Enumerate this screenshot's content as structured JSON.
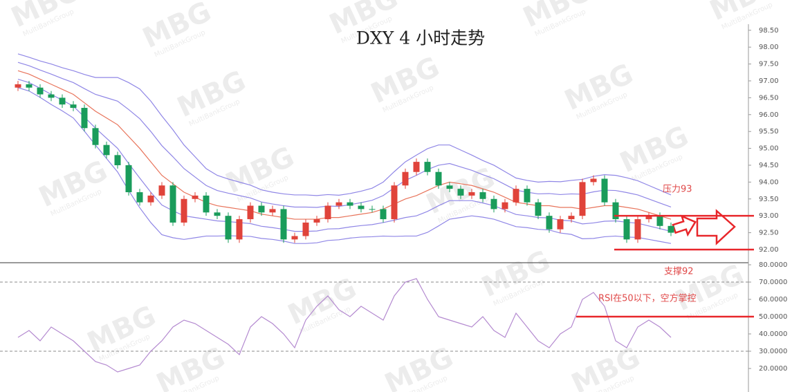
{
  "chart_data": [
    {
      "type": "candlestick",
      "title": "DXY 4 小时走势",
      "watermark": {
        "logo": "MBG",
        "text": "MultiBankGroup"
      },
      "up_color": "#e0433a",
      "down_color": "#1a9c5b",
      "open": [
        96.8,
        96.9,
        96.8,
        96.6,
        96.5,
        96.3,
        96.2,
        95.6,
        95.1,
        94.8,
        94.5,
        93.7,
        93.4,
        93.6,
        93.9,
        92.8,
        93.5,
        93.6,
        93.1,
        93.0,
        92.3,
        92.9,
        93.3,
        93.1,
        93.2,
        92.3,
        92.4,
        92.8,
        92.9,
        93.3,
        93.4,
        93.3,
        93.2,
        93.2,
        92.9,
        93.9,
        94.3,
        94.6,
        94.3,
        93.9,
        93.8,
        93.6,
        93.7,
        93.5,
        93.2,
        93.4,
        93.8,
        93.4,
        93.0,
        92.6,
        92.9,
        93.0,
        94.0,
        94.1,
        93.4,
        92.9,
        92.3,
        92.9,
        93.0,
        92.7
      ],
      "high": [
        97.0,
        97.0,
        96.9,
        96.7,
        96.6,
        96.4,
        96.3,
        95.7,
        95.2,
        94.9,
        94.6,
        93.8,
        93.7,
        94.0,
        94.0,
        93.6,
        93.7,
        93.7,
        93.2,
        93.1,
        93.0,
        93.4,
        93.4,
        93.3,
        93.3,
        92.5,
        92.9,
        93.0,
        93.4,
        93.5,
        93.5,
        93.4,
        93.3,
        93.3,
        94.0,
        94.4,
        94.7,
        94.7,
        94.4,
        94.0,
        93.9,
        93.8,
        93.8,
        93.6,
        93.5,
        93.9,
        93.9,
        93.5,
        93.1,
        93.0,
        93.1,
        94.1,
        94.2,
        94.2,
        93.5,
        93.0,
        93.0,
        93.1,
        93.1,
        92.8
      ],
      "low": [
        96.7,
        96.7,
        96.5,
        96.4,
        96.2,
        96.1,
        95.5,
        95.0,
        94.7,
        94.4,
        93.6,
        93.3,
        93.3,
        93.5,
        92.7,
        92.7,
        93.4,
        93.0,
        92.9,
        92.2,
        92.2,
        92.8,
        93.0,
        93.0,
        92.2,
        92.2,
        92.3,
        92.7,
        92.8,
        93.2,
        93.2,
        93.1,
        93.1,
        92.8,
        92.8,
        93.8,
        94.2,
        94.2,
        93.8,
        93.7,
        93.5,
        93.5,
        93.4,
        93.1,
        93.1,
        93.3,
        93.3,
        92.9,
        92.5,
        92.5,
        92.8,
        92.9,
        93.9,
        93.3,
        92.8,
        92.2,
        92.2,
        92.8,
        92.6,
        92.4
      ],
      "close": [
        96.9,
        96.8,
        96.6,
        96.5,
        96.3,
        96.2,
        95.6,
        95.1,
        94.8,
        94.5,
        93.7,
        93.4,
        93.6,
        93.9,
        92.8,
        93.5,
        93.6,
        93.1,
        93.0,
        92.3,
        92.9,
        93.3,
        93.1,
        93.2,
        92.3,
        92.4,
        92.8,
        92.9,
        93.3,
        93.4,
        93.3,
        93.2,
        93.2,
        92.9,
        93.9,
        94.3,
        94.6,
        94.3,
        93.9,
        93.8,
        93.6,
        93.7,
        93.5,
        93.2,
        93.4,
        93.8,
        93.4,
        93.0,
        92.6,
        92.9,
        93.0,
        94.0,
        94.1,
        93.4,
        92.9,
        92.3,
        92.9,
        93.0,
        92.7,
        92.5
      ],
      "series": [
        {
          "color": "#8f86e6",
          "values": [
            97.8,
            97.7,
            97.59,
            97.5,
            97.39,
            97.3,
            97.19,
            97.1,
            97.1,
            97.1,
            96.95,
            96.76,
            96.4,
            95.96,
            95.55,
            95.1,
            94.75,
            94.4,
            94.2,
            94.09,
            94.0,
            93.91,
            93.77,
            93.7,
            93.65,
            93.62,
            93.62,
            93.6,
            93.63,
            93.61,
            93.66,
            93.73,
            93.82,
            94.0,
            94.31,
            94.6,
            94.8,
            94.99,
            95.1,
            95.1,
            94.95,
            94.8,
            94.64,
            94.5,
            94.31,
            94.12,
            94.05,
            94.0,
            94.02,
            94.01,
            94.05,
            94.08,
            94.17,
            94.22,
            94.2,
            94.13,
            94.04,
            93.9,
            93.76,
            93.62
          ]
        },
        {
          "color": "#8f86e6",
          "values": [
            97.55,
            97.45,
            97.32,
            97.2,
            97.07,
            96.95,
            96.77,
            96.6,
            96.5,
            96.4,
            96.15,
            95.88,
            95.5,
            95.08,
            94.75,
            94.4,
            94.15,
            93.9,
            93.75,
            93.67,
            93.6,
            93.53,
            93.41,
            93.35,
            93.3,
            93.26,
            93.26,
            93.25,
            93.29,
            93.28,
            93.33,
            93.39,
            93.46,
            93.6,
            93.83,
            94.05,
            94.2,
            94.37,
            94.5,
            94.55,
            94.45,
            94.35,
            94.22,
            94.1,
            93.93,
            93.76,
            93.7,
            93.65,
            93.66,
            93.63,
            93.65,
            93.64,
            93.71,
            93.76,
            93.75,
            93.69,
            93.62,
            93.5,
            93.38,
            93.26
          ]
        },
        {
          "color": "#e8735a",
          "values": [
            97.3,
            97.2,
            97.05,
            96.9,
            96.75,
            96.6,
            96.35,
            96.1,
            95.9,
            95.7,
            95.35,
            95.0,
            94.6,
            94.2,
            93.95,
            93.7,
            93.55,
            93.4,
            93.3,
            93.25,
            93.2,
            93.15,
            93.05,
            93.0,
            92.95,
            92.9,
            92.9,
            92.9,
            92.95,
            92.95,
            93.0,
            93.05,
            93.1,
            93.2,
            93.35,
            93.5,
            93.6,
            93.75,
            93.9,
            94.0,
            93.95,
            93.9,
            93.8,
            93.7,
            93.55,
            93.4,
            93.35,
            93.3,
            93.3,
            93.25,
            93.25,
            93.2,
            93.25,
            93.3,
            93.3,
            93.25,
            93.2,
            93.1,
            93.0,
            92.9
          ]
        },
        {
          "color": "#8f86e6",
          "values": [
            97.05,
            96.95,
            96.78,
            96.6,
            96.43,
            96.25,
            95.93,
            95.6,
            95.3,
            95.0,
            94.55,
            94.12,
            93.7,
            93.32,
            93.15,
            93.0,
            92.95,
            92.9,
            92.85,
            92.83,
            92.8,
            92.77,
            92.69,
            92.65,
            92.6,
            92.54,
            92.54,
            92.55,
            92.61,
            92.62,
            92.67,
            92.71,
            92.74,
            92.8,
            92.87,
            92.95,
            93.0,
            93.13,
            93.3,
            93.45,
            93.45,
            93.45,
            93.38,
            93.3,
            93.17,
            93.04,
            93.0,
            92.95,
            92.94,
            92.87,
            92.85,
            92.76,
            92.79,
            92.84,
            92.85,
            92.81,
            92.78,
            92.7,
            92.62,
            92.54
          ]
        },
        {
          "color": "#8f86e6",
          "values": [
            96.8,
            96.7,
            96.51,
            96.3,
            96.11,
            95.9,
            95.51,
            95.1,
            94.7,
            94.3,
            93.75,
            93.24,
            92.8,
            92.44,
            92.35,
            92.3,
            92.35,
            92.4,
            92.4,
            92.41,
            92.4,
            92.39,
            92.33,
            92.3,
            92.25,
            92.18,
            92.18,
            92.2,
            92.27,
            92.29,
            92.34,
            92.37,
            92.38,
            92.4,
            92.39,
            92.4,
            92.4,
            92.51,
            92.7,
            92.9,
            92.95,
            93.0,
            92.96,
            92.9,
            92.79,
            92.68,
            92.65,
            92.6,
            92.58,
            92.49,
            92.45,
            92.32,
            92.33,
            92.38,
            92.4,
            92.37,
            92.36,
            92.3,
            92.24,
            92.18
          ]
        }
      ],
      "levels": [
        {
          "value": 93,
          "label": "压力93",
          "color": "#e8262a"
        },
        {
          "value": 92,
          "label": "支撑92",
          "color": "#e8262a"
        }
      ],
      "ylim": [
        91.61,
        98.68
      ],
      "yticks": [
        {
          "value": 92,
          "label": "92.00"
        },
        {
          "value": 92.5,
          "label": "92.50"
        },
        {
          "value": 93,
          "label": "93.00"
        },
        {
          "value": 93.5,
          "label": "93.50"
        },
        {
          "value": 94,
          "label": "94.00"
        },
        {
          "value": 94.5,
          "label": "94.50"
        },
        {
          "value": 95,
          "label": "95.00"
        },
        {
          "value": 95.5,
          "label": "95.50"
        },
        {
          "value": 96,
          "label": "96.00"
        },
        {
          "value": 96.5,
          "label": "96.50"
        },
        {
          "value": 97,
          "label": "97.00"
        },
        {
          "value": 97.5,
          "label": "97.50"
        },
        {
          "value": 98,
          "label": "98.00"
        },
        {
          "value": 98.5,
          "label": "98.50"
        }
      ]
    },
    {
      "type": "line",
      "color": "#b48ad0",
      "values": [
        38,
        42,
        36,
        44,
        40,
        36,
        30,
        24,
        22,
        18,
        20,
        22,
        30,
        36,
        44,
        48,
        46,
        42,
        38,
        34,
        28,
        44,
        50,
        46,
        40,
        32,
        48,
        56,
        62,
        54,
        50,
        56,
        52,
        48,
        62,
        70,
        72,
        60,
        50,
        48,
        46,
        44,
        50,
        42,
        38,
        52,
        44,
        36,
        32,
        40,
        44,
        60,
        64,
        56,
        36,
        32,
        44,
        48,
        44,
        38
      ],
      "guides": [
        70,
        30
      ],
      "levels": [
        {
          "value": 50,
          "label": "RSI在50以下，空方掌控",
          "color": "#e8262a"
        }
      ],
      "ylim": [
        6.4,
        81.2
      ],
      "yticks": [
        {
          "value": 20,
          "label": "20.0000"
        },
        {
          "value": 30,
          "label": "30.0000"
        },
        {
          "value": 40,
          "label": "40.0000"
        },
        {
          "value": 50,
          "label": "50.0000"
        },
        {
          "value": 60,
          "label": "60.0000"
        },
        {
          "value": 70,
          "label": "70.0000"
        },
        {
          "value": 80,
          "label": "80.0000"
        }
      ]
    }
  ]
}
